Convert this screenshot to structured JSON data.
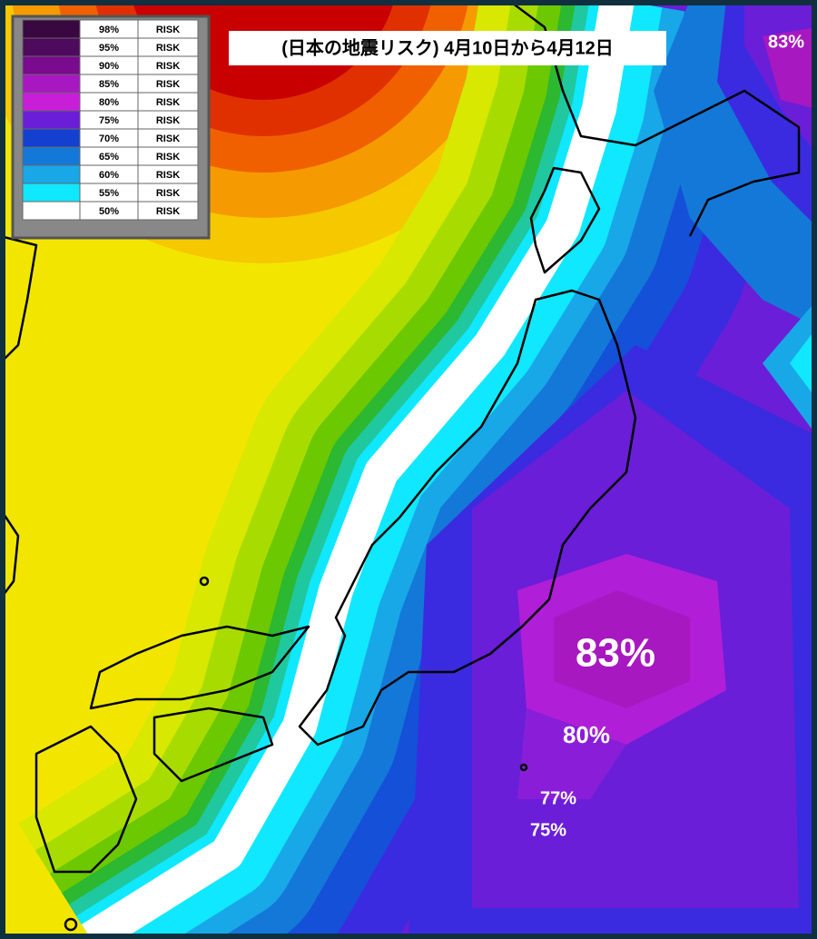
{
  "title": "(日本の地震リスク) 4月10日から4月12日",
  "legend": [
    {
      "level": "98%",
      "label": "RISK",
      "color": "#3a0840"
    },
    {
      "level": "95%",
      "label": "RISK",
      "color": "#4e0a5c"
    },
    {
      "level": "90%",
      "label": "RISK",
      "color": "#7a0a8e"
    },
    {
      "level": "85%",
      "label": "RISK",
      "color": "#a818c0"
    },
    {
      "level": "80%",
      "label": "RISK",
      "color": "#c81ed8"
    },
    {
      "level": "75%",
      "label": "RISK",
      "color": "#6a1ed8"
    },
    {
      "level": "70%",
      "label": "RISK",
      "color": "#1440d0"
    },
    {
      "level": "65%",
      "label": "RISK",
      "color": "#1478d8"
    },
    {
      "level": "60%",
      "label": "RISK",
      "color": "#18a8e8"
    },
    {
      "level": "55%",
      "label": "RISK",
      "color": "#10e8ff"
    },
    {
      "level": "50%",
      "label": "RISK",
      "color": "#ffffff"
    }
  ],
  "labels": [
    "83%",
    "83%",
    "80%",
    "77%",
    "75%"
  ]
}
